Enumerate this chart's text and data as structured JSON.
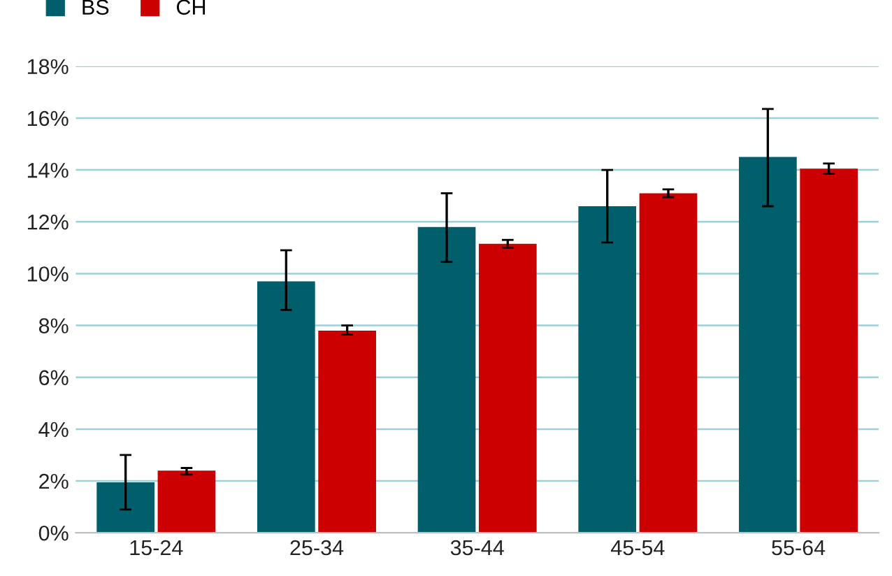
{
  "chart_data": {
    "type": "bar",
    "categories": [
      "15-24",
      "25-34",
      "35-44",
      "45-54",
      "55-64"
    ],
    "series": [
      {
        "name": "BS",
        "color": "#005f6b",
        "values": [
          1.95,
          9.7,
          11.8,
          12.6,
          14.5
        ],
        "errors": [
          [
            0.9,
            3.0
          ],
          [
            8.6,
            10.9
          ],
          [
            10.45,
            13.1
          ],
          [
            11.2,
            14.0
          ],
          [
            12.6,
            16.35
          ]
        ]
      },
      {
        "name": "CH",
        "color": "#cc0000",
        "values": [
          2.4,
          7.8,
          11.15,
          13.1,
          14.05
        ],
        "errors": [
          [
            2.25,
            2.5
          ],
          [
            7.65,
            8.0
          ],
          [
            11.0,
            11.3
          ],
          [
            12.95,
            13.25
          ],
          [
            13.85,
            14.25
          ]
        ]
      }
    ],
    "ylim": [
      0,
      18
    ],
    "yticks": [
      {
        "value": 0,
        "label": "0%"
      },
      {
        "value": 2,
        "label": "2%"
      },
      {
        "value": 4,
        "label": "4%"
      },
      {
        "value": 6,
        "label": "6%"
      },
      {
        "value": 8,
        "label": "8%"
      },
      {
        "value": 10,
        "label": "10%"
      },
      {
        "value": 12,
        "label": "12%"
      },
      {
        "value": 14,
        "label": "14%"
      },
      {
        "value": 16,
        "label": "16%"
      },
      {
        "value": 18,
        "label": "18%"
      }
    ],
    "grid": "y",
    "legend": "top left"
  }
}
